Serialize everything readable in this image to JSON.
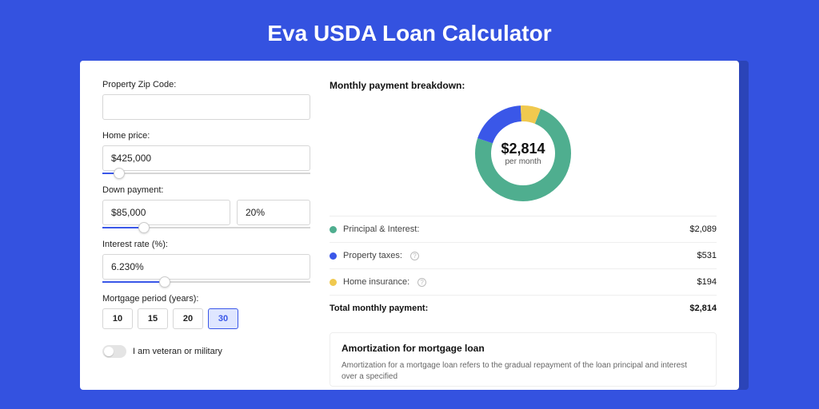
{
  "page_title": "Eva USDA Loan Calculator",
  "colors": {
    "background": "#3452e0",
    "background_shadow": "#2b44b8",
    "card_bg": "#ffffff",
    "accent": "#3a57e8",
    "text": "#222222",
    "border": "#d6d6d6"
  },
  "form": {
    "zip": {
      "label": "Property Zip Code:",
      "value": ""
    },
    "home_price": {
      "label": "Home price:",
      "value": "$425,000",
      "slider_pct": 8
    },
    "down_payment": {
      "label": "Down payment:",
      "value": "$85,000",
      "percent": "20%",
      "slider_pct": 20
    },
    "interest_rate": {
      "label": "Interest rate (%):",
      "value": "6.230%",
      "slider_pct": 30
    },
    "mortgage_period": {
      "label": "Mortgage period (years):",
      "options": [
        "10",
        "15",
        "20",
        "30"
      ],
      "selected": "30"
    },
    "veteran": {
      "label": "I am veteran or military",
      "checked": false
    }
  },
  "breakdown": {
    "heading": "Monthly payment breakdown:",
    "center_amount": "$2,814",
    "center_sub": "per month",
    "items": [
      {
        "key": "principal_interest",
        "label": "Principal & Interest:",
        "value": "$2,089",
        "color": "#4fae8f",
        "has_info": false,
        "pct": 74
      },
      {
        "key": "property_taxes",
        "label": "Property taxes:",
        "value": "$531",
        "color": "#3a57e8",
        "has_info": true,
        "pct": 19
      },
      {
        "key": "home_insurance",
        "label": "Home insurance:",
        "value": "$194",
        "color": "#f0c94f",
        "has_info": true,
        "pct": 7
      }
    ],
    "total": {
      "label": "Total monthly payment:",
      "value": "$2,814"
    }
  },
  "amortization": {
    "title": "Amortization for mortgage loan",
    "body": "Amortization for a mortgage loan refers to the gradual repayment of the loan principal and interest over a specified"
  },
  "donut": {
    "radius": 64,
    "stroke_width": 20
  }
}
